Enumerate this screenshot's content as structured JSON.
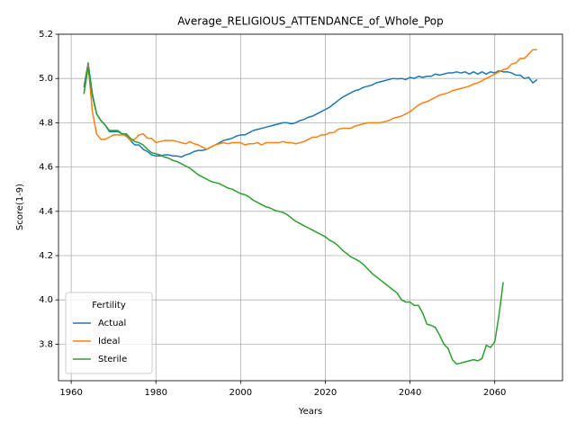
{
  "chart_data": {
    "type": "line",
    "title": "Average_RELIGIOUS_ATTENDANCE_of_Whole_Pop",
    "x_label": "Years",
    "y_label": "Score(1-9)",
    "x": [
      1963,
      1964,
      1965,
      1966,
      1967,
      1968,
      1969,
      1970,
      1971,
      1972,
      1973,
      1974,
      1975,
      1976,
      1977,
      1978,
      1979,
      1980,
      1981,
      1982,
      1983,
      1984,
      1985,
      1986,
      1987,
      1988,
      1989,
      1990,
      1991,
      1992,
      1993,
      1994,
      1995,
      1996,
      1997,
      1998,
      1999,
      2000,
      2001,
      2002,
      2003,
      2004,
      2005,
      2006,
      2007,
      2008,
      2009,
      2010,
      2011,
      2012,
      2013,
      2014,
      2015,
      2016,
      2017,
      2018,
      2019,
      2020,
      2021,
      2022,
      2023,
      2024,
      2025,
      2026,
      2027,
      2028,
      2029,
      2030,
      2031,
      2032,
      2033,
      2034,
      2035,
      2036,
      2037,
      2038,
      2039,
      2040,
      2041,
      2042,
      2043,
      2044,
      2045,
      2046,
      2047,
      2048,
      2049,
      2050,
      2051,
      2052,
      2053,
      2054,
      2055,
      2056,
      2057,
      2058,
      2059,
      2060,
      2061,
      2062,
      2063,
      2064,
      2065,
      2066,
      2067,
      2068,
      2069,
      2070
    ],
    "series": [
      {
        "name": "Actual",
        "color": "#1f77b4",
        "values": [
          4.96,
          5.07,
          4.93,
          4.84,
          4.81,
          4.79,
          4.76,
          4.76,
          4.76,
          4.75,
          4.74,
          4.72,
          4.7,
          4.7,
          4.68,
          4.67,
          4.655,
          4.65,
          4.65,
          4.655,
          4.655,
          4.65,
          4.65,
          4.645,
          4.655,
          4.66,
          4.67,
          4.675,
          4.675,
          4.68,
          4.69,
          4.7,
          4.71,
          4.72,
          4.725,
          4.73,
          4.74,
          4.745,
          4.745,
          4.755,
          4.765,
          4.77,
          4.775,
          4.78,
          4.785,
          4.79,
          4.795,
          4.8,
          4.8,
          4.795,
          4.8,
          4.81,
          4.815,
          4.825,
          4.83,
          4.84,
          4.85,
          4.86,
          4.87,
          4.885,
          4.9,
          4.915,
          4.925,
          4.935,
          4.945,
          4.95,
          4.96,
          4.965,
          4.97,
          4.98,
          4.985,
          4.99,
          4.995,
          5.0,
          4.998,
          5.0,
          4.995,
          5.005,
          5.0,
          5.01,
          5.005,
          5.01,
          5.01,
          5.02,
          5.015,
          5.02,
          5.025,
          5.025,
          5.03,
          5.025,
          5.03,
          5.02,
          5.03,
          5.02,
          5.03,
          5.02,
          5.03,
          5.025,
          5.035,
          5.03,
          5.03,
          5.025,
          5.015,
          5.015,
          5.0,
          5.005,
          4.98,
          4.995
        ]
      },
      {
        "name": "Ideal",
        "color": "#ff7f0e",
        "values": [
          4.93,
          5.06,
          4.85,
          4.75,
          4.725,
          4.725,
          4.735,
          4.745,
          4.745,
          4.745,
          4.745,
          4.72,
          4.725,
          4.745,
          4.75,
          4.73,
          4.73,
          4.71,
          4.715,
          4.72,
          4.72,
          4.72,
          4.715,
          4.71,
          4.705,
          4.715,
          4.705,
          4.7,
          4.69,
          4.68,
          4.69,
          4.7,
          4.705,
          4.71,
          4.705,
          4.71,
          4.71,
          4.71,
          4.7,
          4.705,
          4.705,
          4.71,
          4.7,
          4.71,
          4.71,
          4.71,
          4.71,
          4.715,
          4.71,
          4.71,
          4.705,
          4.71,
          4.715,
          4.725,
          4.735,
          4.735,
          4.745,
          4.745,
          4.755,
          4.755,
          4.77,
          4.775,
          4.775,
          4.775,
          4.785,
          4.79,
          4.795,
          4.8,
          4.8,
          4.8,
          4.8,
          4.805,
          4.81,
          4.82,
          4.825,
          4.83,
          4.84,
          4.85,
          4.865,
          4.88,
          4.89,
          4.895,
          4.905,
          4.915,
          4.925,
          4.93,
          4.935,
          4.945,
          4.95,
          4.955,
          4.96,
          4.965,
          4.975,
          4.98,
          4.99,
          5.0,
          5.01,
          5.02,
          5.03,
          5.04,
          5.045,
          5.065,
          5.07,
          5.09,
          5.09,
          5.11,
          5.13,
          5.13
        ]
      },
      {
        "name": "Sterile",
        "color": "#2ca02c",
        "values": [
          4.93,
          5.05,
          4.92,
          4.84,
          4.81,
          4.79,
          4.765,
          4.765,
          4.765,
          4.75,
          4.75,
          4.73,
          4.715,
          4.71,
          4.7,
          4.68,
          4.665,
          4.66,
          4.655,
          4.645,
          4.64,
          4.63,
          4.625,
          4.615,
          4.605,
          4.595,
          4.58,
          4.565,
          4.555,
          4.545,
          4.535,
          4.53,
          4.525,
          4.515,
          4.505,
          4.5,
          4.49,
          4.48,
          4.475,
          4.465,
          4.45,
          4.44,
          4.43,
          4.42,
          4.415,
          4.405,
          4.4,
          4.395,
          4.385,
          4.37,
          4.355,
          4.345,
          4.335,
          4.325,
          4.315,
          4.305,
          4.295,
          4.285,
          4.27,
          4.26,
          4.245,
          4.225,
          4.21,
          4.195,
          4.185,
          4.175,
          4.16,
          4.14,
          4.12,
          4.105,
          4.09,
          4.075,
          4.06,
          4.045,
          4.03,
          4.0,
          3.99,
          3.99,
          3.975,
          3.975,
          3.94,
          3.89,
          3.885,
          3.875,
          3.84,
          3.8,
          3.78,
          3.73,
          3.71,
          3.715,
          3.72,
          3.725,
          3.73,
          3.725,
          3.735,
          3.795,
          3.785,
          3.81,
          3.93,
          4.08,
          null,
          null,
          null,
          null,
          null,
          null,
          null,
          null
        ]
      }
    ],
    "xlim": [
      1957,
      2076
    ],
    "ylim": [
      3.635,
      5.2
    ],
    "xticks": [
      1960,
      1980,
      2000,
      2020,
      2040,
      2060
    ],
    "yticks": [
      3.8,
      {
        "value": 4,
        "label": "4.0"
      },
      4.2,
      4.4,
      4.6,
      4.8,
      {
        "value": 5,
        "label": "5.0"
      },
      5.2
    ],
    "grid": true,
    "legend_title": "Fertility",
    "legend_position": "lower left"
  }
}
